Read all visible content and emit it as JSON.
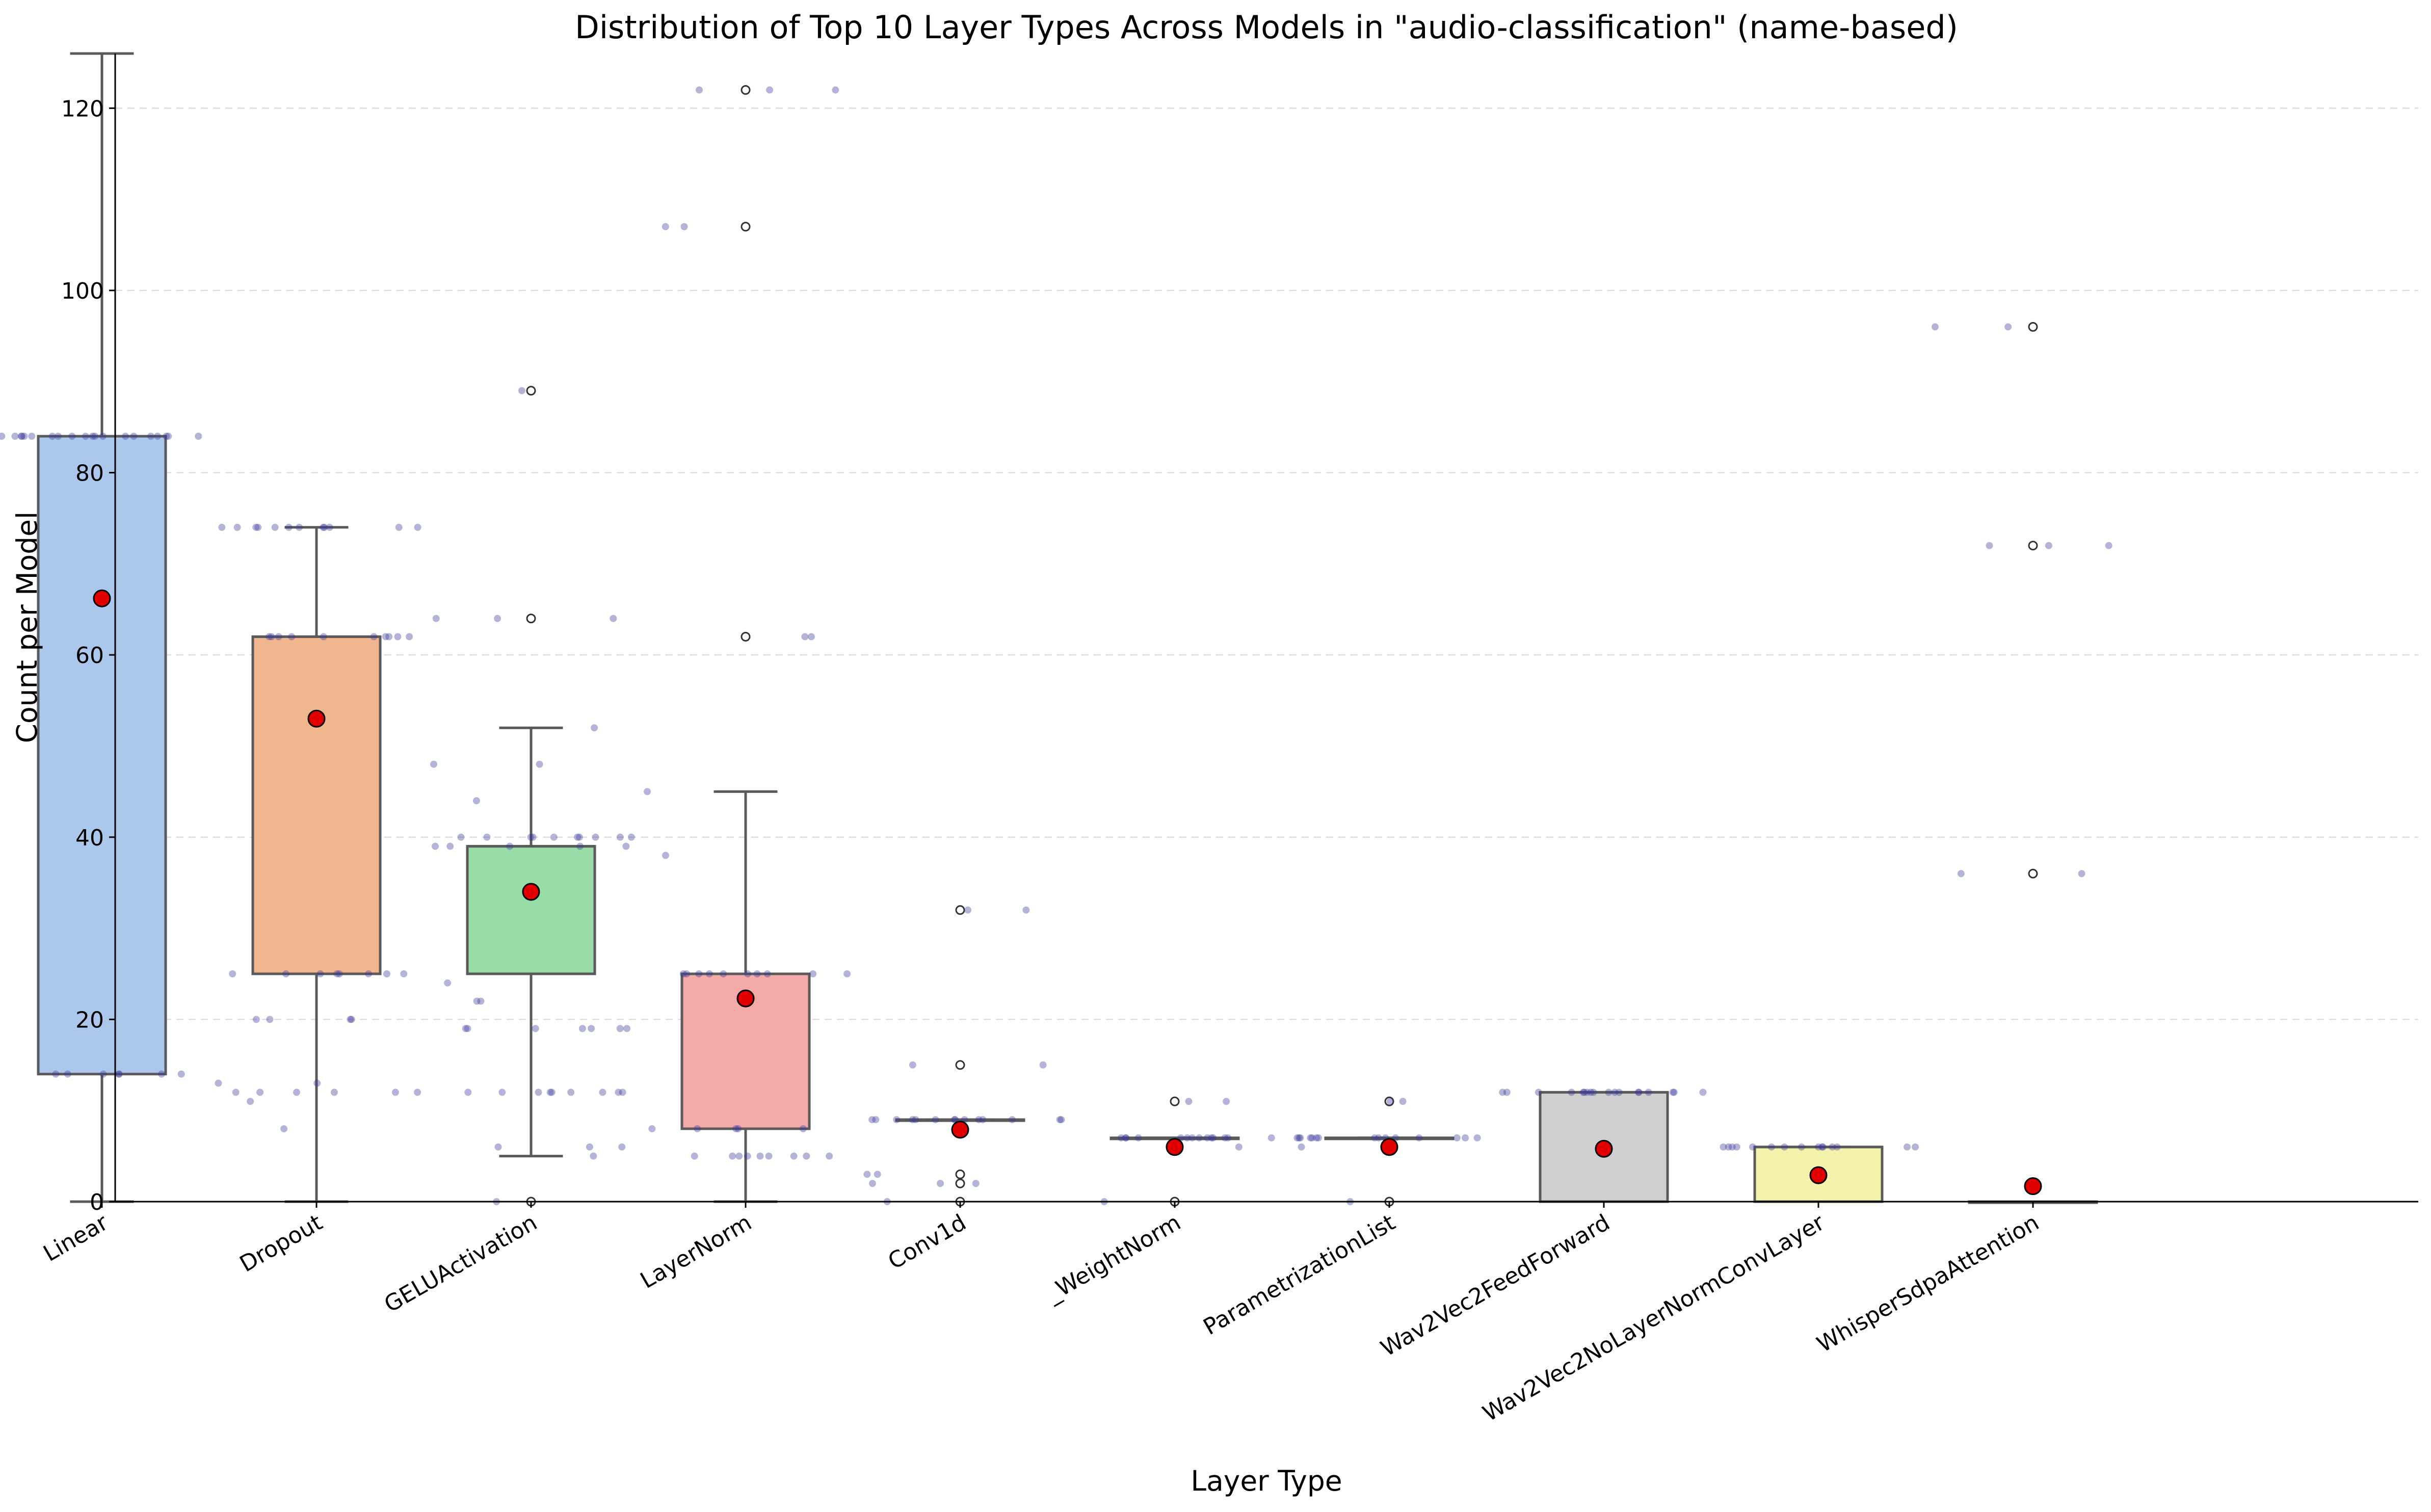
{
  "chart_data": {
    "type": "box",
    "title": "Distribution of Top 10 Layer Types Across Models in \"audio-classification\" (name-based)",
    "xlabel": "Layer Type",
    "ylabel": "Count per Model",
    "ylim": [
      0,
      126
    ],
    "yticks": [
      0,
      20,
      40,
      60,
      80,
      100,
      120
    ],
    "grid": "y-dashed",
    "categories": [
      "Linear",
      "Dropout",
      "GELUActivation",
      "LayerNorm",
      "Conv1d",
      "_WeightNorm",
      "ParametrizationList",
      "Wav2Vec2FeedForward",
      "Wav2Vec2NoLayerNormConvLayer",
      "WhisperSdpaAttention"
    ],
    "boxes": [
      {
        "category": "Linear",
        "q1": 14,
        "median": 84,
        "q3": 84,
        "whisker_low": 0,
        "whisker_high": 126,
        "mean": 66.2,
        "outliers": [],
        "color": "#abc8ec"
      },
      {
        "category": "Dropout",
        "q1": 25,
        "median": 62,
        "q3": 62,
        "whisker_low": 0,
        "whisker_high": 74,
        "mean": 53,
        "outliers": [],
        "color": "#f0b78f"
      },
      {
        "category": "GELUActivation",
        "q1": 25,
        "median": 39,
        "q3": 39,
        "whisker_low": 5,
        "whisker_high": 52,
        "mean": 34,
        "outliers": [
          0,
          64,
          89
        ],
        "color": "#98dca7"
      },
      {
        "category": "LayerNorm",
        "q1": 8,
        "median": 25,
        "q3": 25,
        "whisker_low": 0,
        "whisker_high": 45,
        "mean": 22.3,
        "outliers": [
          62,
          107,
          122
        ],
        "color": "#f2a9a8"
      },
      {
        "category": "Conv1d",
        "q1": 9,
        "median": 9,
        "q3": 9,
        "whisker_low": 9,
        "whisker_high": 9,
        "mean": 7.9,
        "outliers": [
          0,
          2,
          3,
          15,
          32
        ],
        "color": "#c9b6e4"
      },
      {
        "category": "_WeightNorm",
        "q1": 7,
        "median": 7,
        "q3": 7,
        "whisker_low": 7,
        "whisker_high": 7,
        "mean": 6,
        "outliers": [
          0,
          11
        ],
        "color": "#d8bba4"
      },
      {
        "category": "ParametrizationList",
        "q1": 7,
        "median": 7,
        "q3": 7,
        "whisker_low": 7,
        "whisker_high": 7,
        "mean": 6,
        "outliers": [
          0,
          11
        ],
        "color": "#f3bde3"
      },
      {
        "category": "Wav2Vec2FeedForward",
        "q1": 0,
        "median": 12,
        "q3": 12,
        "whisker_low": 0,
        "whisker_high": 12,
        "mean": 5.8,
        "outliers": [],
        "color": "#cfcfcf"
      },
      {
        "category": "Wav2Vec2NoLayerNormConvLayer",
        "q1": 0,
        "median": 6,
        "q3": 6,
        "whisker_low": 0,
        "whisker_high": 6,
        "mean": 2.9,
        "outliers": [],
        "color": "#f4f3ab"
      },
      {
        "category": "WhisperSdpaAttention",
        "q1": 0,
        "median": 0,
        "q3": 0,
        "whisker_low": 0,
        "whisker_high": 0,
        "mean": 1.7,
        "outliers": [
          36,
          72,
          96
        ],
        "color": "#b8e3f0"
      }
    ],
    "points": [
      {
        "category": "Linear",
        "values": [
          84,
          84,
          84,
          84,
          84,
          84,
          84,
          84,
          84,
          84,
          84,
          84,
          84,
          84,
          84,
          84,
          84,
          84,
          84,
          84,
          14,
          14,
          14,
          14,
          14,
          14,
          14
        ]
      },
      {
        "category": "Dropout",
        "values": [
          74,
          74,
          74,
          74,
          74,
          74,
          74,
          74,
          74,
          74,
          74,
          74,
          62,
          62,
          62,
          62,
          62,
          62,
          62,
          62,
          62,
          62,
          25,
          25,
          25,
          25,
          25,
          25,
          25,
          25,
          20,
          20,
          20,
          20,
          13,
          13,
          12,
          12,
          12,
          12,
          12,
          12,
          11,
          8
        ]
      },
      {
        "category": "GELUActivation",
        "values": [
          89,
          64,
          64,
          64,
          52,
          48,
          48,
          44,
          40,
          40,
          40,
          40,
          40,
          40,
          40,
          40,
          40,
          40,
          39,
          39,
          39,
          39,
          39,
          24,
          22,
          22,
          19,
          19,
          19,
          19,
          19,
          19,
          19,
          12,
          12,
          12,
          12,
          12,
          12,
          12,
          12,
          12,
          6,
          6,
          6,
          5,
          0
        ]
      },
      {
        "category": "LayerNorm",
        "values": [
          122,
          122,
          122,
          107,
          107,
          62,
          62,
          45,
          38,
          25,
          25,
          25,
          25,
          25,
          25,
          25,
          25,
          25,
          25,
          8,
          8,
          8,
          8,
          8,
          5,
          5,
          5,
          5,
          5,
          5,
          5,
          5,
          5
        ]
      },
      {
        "category": "Conv1d",
        "values": [
          32,
          32,
          15,
          15,
          9,
          9,
          9,
          9,
          9,
          9,
          9,
          9,
          9,
          9,
          9,
          9,
          9,
          9,
          3,
          3,
          2,
          2,
          2,
          0
        ]
      },
      {
        "category": "_WeightNorm",
        "values": [
          11,
          11,
          7,
          7,
          7,
          7,
          7,
          7,
          7,
          7,
          7,
          7,
          7,
          7,
          7,
          7,
          6,
          0
        ]
      },
      {
        "category": "ParametrizationList",
        "values": [
          11,
          11,
          7,
          7,
          7,
          7,
          7,
          7,
          7,
          7,
          7,
          7,
          7,
          7,
          7,
          7,
          7,
          6,
          0
        ]
      },
      {
        "category": "Wav2Vec2FeedForward",
        "values": [
          12,
          12,
          12,
          12,
          12,
          12,
          12,
          12,
          12,
          12,
          12,
          12,
          12,
          12,
          12,
          12,
          12,
          12
        ]
      },
      {
        "category": "Wav2Vec2NoLayerNormConvLayer",
        "values": [
          6,
          6,
          6,
          6,
          6,
          6,
          6,
          6,
          6,
          6,
          6,
          6,
          6,
          6,
          6
        ]
      },
      {
        "category": "WhisperSdpaAttention",
        "values": [
          96,
          96,
          72,
          72,
          72,
          36,
          36
        ]
      }
    ],
    "colors": {
      "box_edge": "#5a5a5a",
      "point": "#3a3a9a",
      "mean_marker": "#e00000",
      "grid": "#d9d9d9"
    }
  }
}
